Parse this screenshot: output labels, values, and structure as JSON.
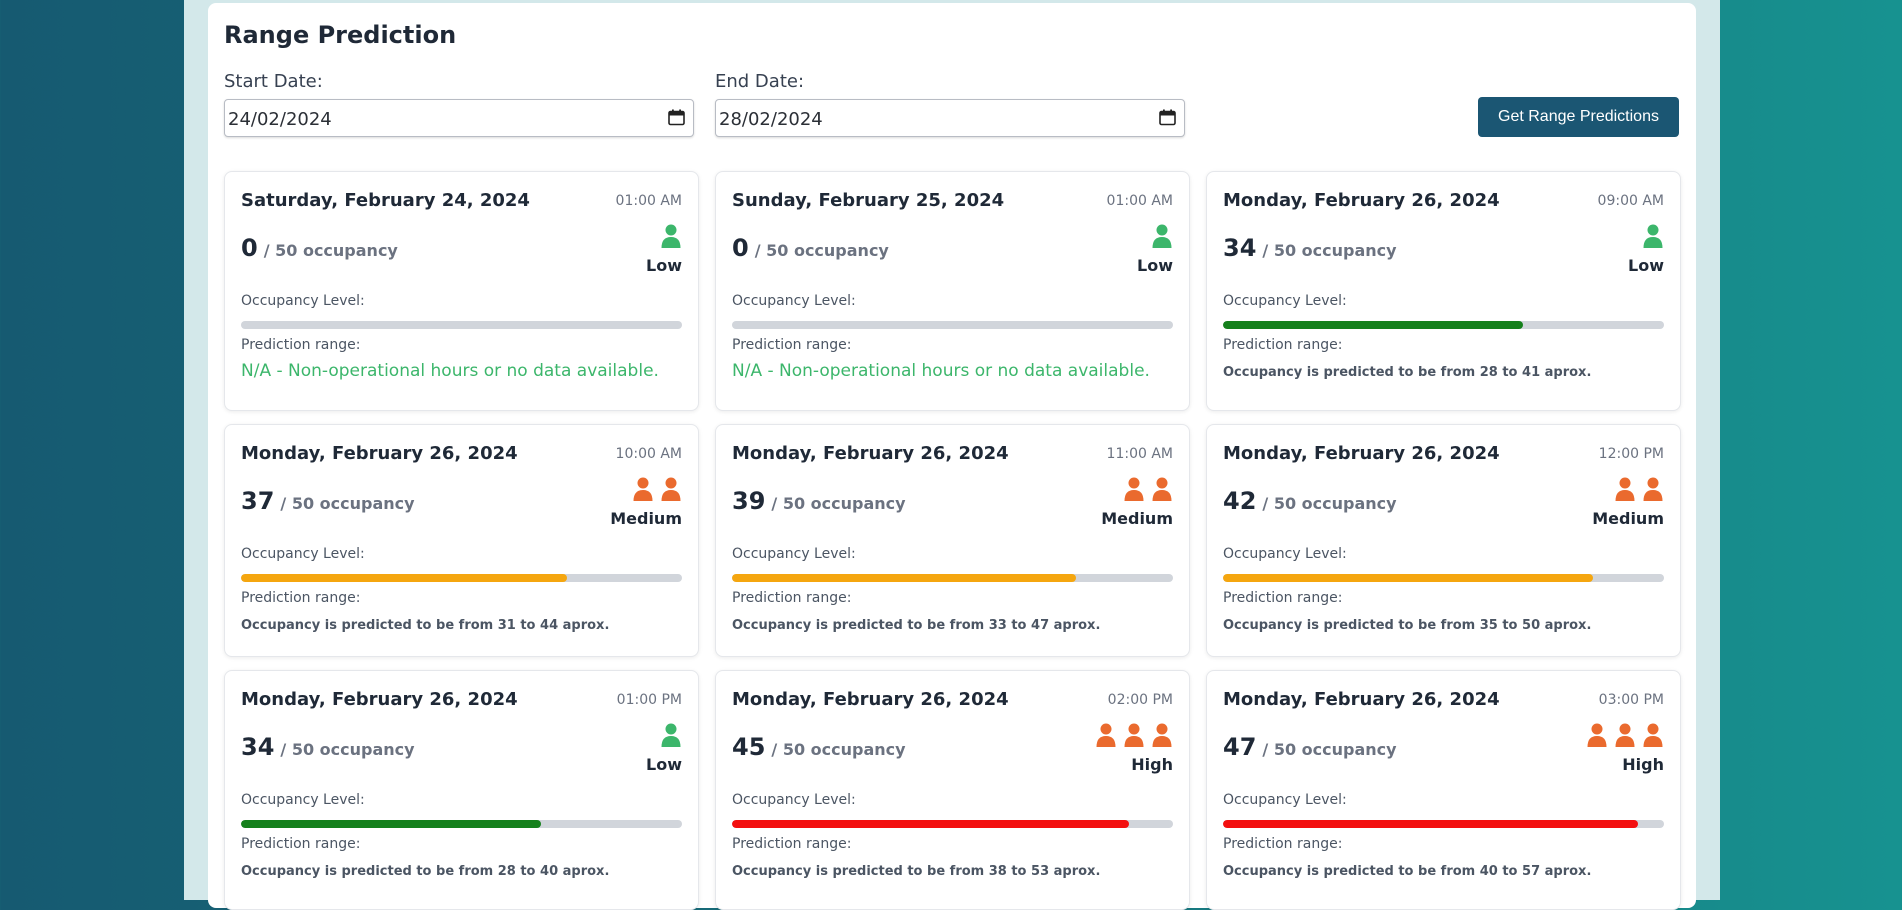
{
  "page": {
    "title": "Range Prediction",
    "start_label": "Start Date:",
    "start_value": "24/02/2024",
    "end_label": "End Date:",
    "end_value": "28/02/2024",
    "button": "Get Range Predictions"
  },
  "colors": {
    "button_bg": "#1b5673",
    "low_person": "#3cb66b",
    "medium_person": "#ea6a2e",
    "high_person": "#ea6a2e",
    "low_bar": "#15801c",
    "medium_bar": "#f5a60f",
    "high_bar": "#f30f0f",
    "na_text": "#3cb66b"
  },
  "cards": [
    {
      "date": "Saturday, February 24, 2024",
      "time": "01:00 AM",
      "count": "0",
      "capacity": "/ 50 occupancy",
      "level": "Low",
      "icon": "person-icon",
      "people": 1,
      "occupancy_fraction": 0,
      "occupancy_label": "Occupancy Level:",
      "range_label": "Prediction range:",
      "range_text": "N/A - Non-operational hours or no data available.",
      "na": true
    },
    {
      "date": "Sunday, February 25, 2024",
      "time": "01:00 AM",
      "count": "0",
      "capacity": "/ 50 occupancy",
      "level": "Low",
      "icon": "person-icon",
      "people": 1,
      "occupancy_fraction": 0,
      "occupancy_label": "Occupancy Level:",
      "range_label": "Prediction range:",
      "range_text": "N/A - Non-operational hours or no data available.",
      "na": true
    },
    {
      "date": "Monday, February 26, 2024",
      "time": "09:00 AM",
      "count": "34",
      "capacity": "/ 50 occupancy",
      "level": "Low",
      "icon": "person-icon",
      "people": 1,
      "occupancy_fraction": 0.68,
      "occupancy_label": "Occupancy Level:",
      "range_label": "Prediction range:",
      "range_text": "Occupancy is predicted to be from 28 to 41 aprox.",
      "na": false
    },
    {
      "date": "Monday, February 26, 2024",
      "time": "10:00 AM",
      "count": "37",
      "capacity": "/ 50 occupancy",
      "level": "Medium",
      "icon": "person-icon",
      "people": 2,
      "occupancy_fraction": 0.74,
      "occupancy_label": "Occupancy Level:",
      "range_label": "Prediction range:",
      "range_text": "Occupancy is predicted to be from 31 to 44 aprox.",
      "na": false
    },
    {
      "date": "Monday, February 26, 2024",
      "time": "11:00 AM",
      "count": "39",
      "capacity": "/ 50 occupancy",
      "level": "Medium",
      "icon": "person-icon",
      "people": 2,
      "occupancy_fraction": 0.78,
      "occupancy_label": "Occupancy Level:",
      "range_label": "Prediction range:",
      "range_text": "Occupancy is predicted to be from 33 to 47 aprox.",
      "na": false
    },
    {
      "date": "Monday, February 26, 2024",
      "time": "12:00 PM",
      "count": "42",
      "capacity": "/ 50 occupancy",
      "level": "Medium",
      "icon": "person-icon",
      "people": 2,
      "occupancy_fraction": 0.84,
      "occupancy_label": "Occupancy Level:",
      "range_label": "Prediction range:",
      "range_text": "Occupancy is predicted to be from 35 to 50 aprox.",
      "na": false
    },
    {
      "date": "Monday, February 26, 2024",
      "time": "01:00 PM",
      "count": "34",
      "capacity": "/ 50 occupancy",
      "level": "Low",
      "icon": "person-icon",
      "people": 1,
      "occupancy_fraction": 0.68,
      "occupancy_label": "Occupancy Level:",
      "range_label": "Prediction range:",
      "range_text": "Occupancy is predicted to be from 28 to 40 aprox.",
      "na": false
    },
    {
      "date": "Monday, February 26, 2024",
      "time": "02:00 PM",
      "count": "45",
      "capacity": "/ 50 occupancy",
      "level": "High",
      "icon": "person-icon",
      "people": 3,
      "occupancy_fraction": 0.9,
      "occupancy_label": "Occupancy Level:",
      "range_label": "Prediction range:",
      "range_text": "Occupancy is predicted to be from 38 to 53 aprox.",
      "na": false
    },
    {
      "date": "Monday, February 26, 2024",
      "time": "03:00 PM",
      "count": "47",
      "capacity": "/ 50 occupancy",
      "level": "High",
      "icon": "person-icon",
      "people": 3,
      "occupancy_fraction": 0.94,
      "occupancy_label": "Occupancy Level:",
      "range_label": "Prediction range:",
      "range_text": "Occupancy is predicted to be from 40 to 57 aprox.",
      "na": false
    }
  ]
}
